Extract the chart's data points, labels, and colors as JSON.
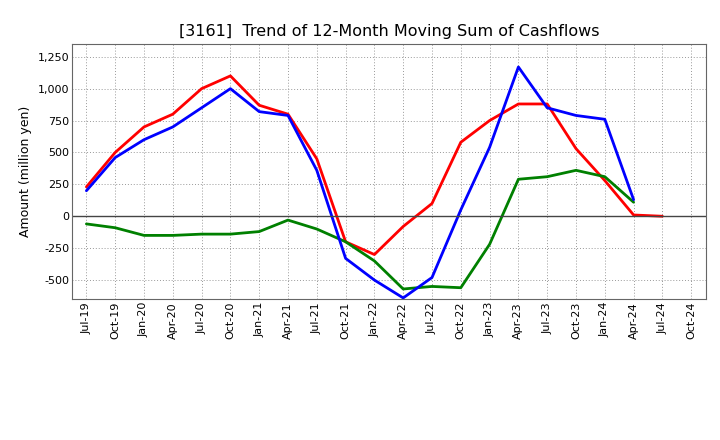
{
  "title": "[3161]  Trend of 12-Month Moving Sum of Cashflows",
  "ylabel": "Amount (million yen)",
  "ylim": [
    -650,
    1350
  ],
  "yticks": [
    -500,
    -250,
    0,
    250,
    500,
    750,
    1000,
    1250
  ],
  "x_labels": [
    "Jul-19",
    "Oct-19",
    "Jan-20",
    "Apr-20",
    "Jul-20",
    "Oct-20",
    "Jan-21",
    "Apr-21",
    "Jul-21",
    "Oct-21",
    "Jan-22",
    "Apr-22",
    "Jul-22",
    "Oct-22",
    "Jan-23",
    "Apr-23",
    "Jul-23",
    "Oct-23",
    "Jan-24",
    "Apr-24",
    "Jul-24",
    "Oct-24"
  ],
  "operating": [
    230,
    500,
    700,
    800,
    1000,
    1100,
    870,
    800,
    450,
    -200,
    -300,
    -80,
    100,
    580,
    750,
    880,
    880,
    530,
    280,
    10,
    0,
    null
  ],
  "investing": [
    -60,
    -90,
    -150,
    -150,
    -140,
    -140,
    -120,
    -30,
    -100,
    -200,
    -350,
    -570,
    -550,
    -560,
    -220,
    290,
    310,
    360,
    310,
    110,
    null,
    null
  ],
  "free": [
    200,
    460,
    600,
    700,
    850,
    1000,
    820,
    790,
    360,
    -330,
    -500,
    -640,
    -480,
    50,
    540,
    1170,
    850,
    790,
    760,
    130,
    null,
    null
  ],
  "operating_color": "#ff0000",
  "investing_color": "#008000",
  "free_color": "#0000ff",
  "bg_color": "#ffffff",
  "grid_color": "#999999",
  "zero_line_color": "#444444",
  "title_fontsize": 11.5,
  "label_fontsize": 9,
  "tick_fontsize": 8,
  "legend_fontsize": 9,
  "linewidth": 2.0
}
